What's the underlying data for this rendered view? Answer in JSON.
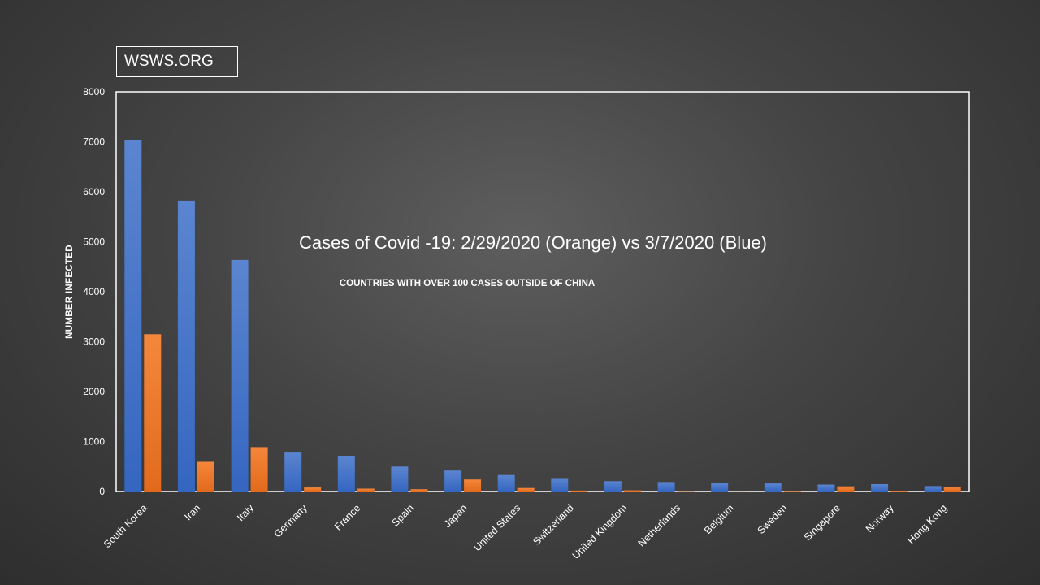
{
  "brand": "WSWS.ORG",
  "chart_data": {
    "type": "bar",
    "title": "Cases of Covid -19: 2/29/2020 (Orange) vs 3/7/2020 (Blue)",
    "subtitle": "COUNTRIES WITH OVER 100 CASES OUTSIDE OF CHINA",
    "ylabel": "NUMBER INFECTED",
    "xlabel": "",
    "ylim": [
      0,
      8000
    ],
    "yticks": [
      0,
      1000,
      2000,
      3000,
      4000,
      5000,
      6000,
      7000,
      8000
    ],
    "grid": false,
    "legend": "none",
    "categories": [
      "South Korea",
      "Iran",
      "Italy",
      "Germany",
      "France",
      "Spain",
      "Japan",
      "United States",
      "Switzerland",
      "United Kingdom",
      "Netherlands",
      "Belgium",
      "Sweden",
      "Singapore",
      "Norway",
      "Hong Kong"
    ],
    "series": [
      {
        "color": "#4472c4",
        "values": [
          7041,
          5823,
          4636,
          795,
          716,
          500,
          420,
          330,
          268,
          206,
          188,
          169,
          161,
          138,
          147,
          107
        ]
      },
      {
        "color": "#ed7d31",
        "values": [
          3150,
          593,
          888,
          79,
          57,
          45,
          241,
          70,
          18,
          23,
          7,
          1,
          12,
          102,
          15,
          95
        ]
      }
    ]
  }
}
